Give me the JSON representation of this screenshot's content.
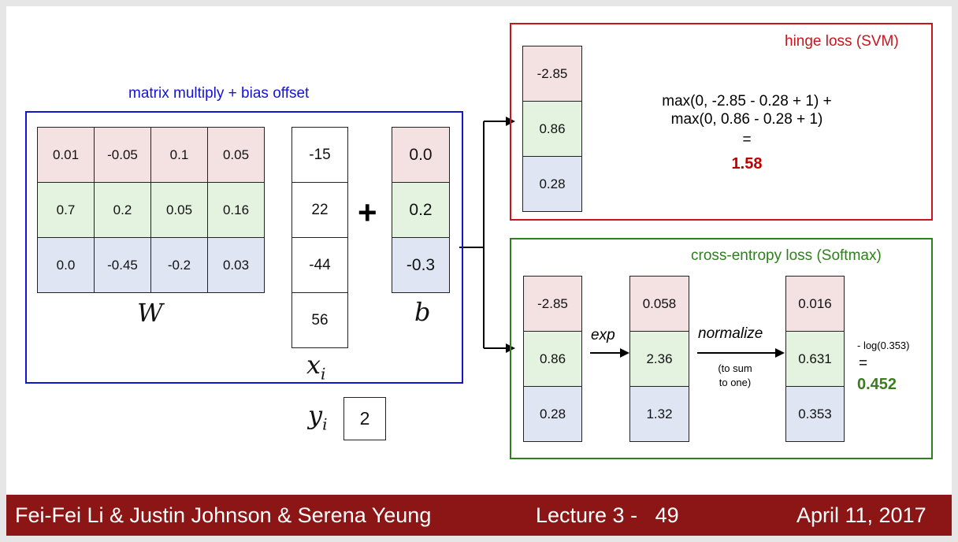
{
  "mm_title": "matrix multiply + bias offset",
  "W": [
    [
      "0.01",
      "-0.05",
      "0.1",
      "0.05"
    ],
    [
      "0.7",
      "0.2",
      "0.05",
      "0.16"
    ],
    [
      "0.0",
      "-0.45",
      "-0.2",
      "0.03"
    ]
  ],
  "W_label": "W",
  "x": [
    "-15",
    "22",
    "-44",
    "56"
  ],
  "x_label_base": "x",
  "x_label_sub": "i",
  "plus": "+",
  "b": [
    "0.0",
    "0.2",
    "-0.3"
  ],
  "b_label": "b",
  "y_label_base": "y",
  "y_label_sub": "i",
  "y_value": "2",
  "hinge": {
    "title": "hinge loss (SVM)",
    "scores": [
      "-2.85",
      "0.86",
      "0.28"
    ],
    "line1": "max(0, -2.85 - 0.28 + 1) +",
    "line2": "max(0, 0.86 - 0.28 + 1)",
    "eq": "=",
    "result": "1.58"
  },
  "softmax": {
    "title": "cross-entropy loss (Softmax)",
    "scores": [
      "-2.85",
      "0.86",
      "0.28"
    ],
    "exp_label": "exp",
    "exp_vals": [
      "0.058",
      "2.36",
      "1.32"
    ],
    "normalize_label": "normalize",
    "normalize_note1": "(to sum",
    "normalize_note2": "to one)",
    "probs": [
      "0.016",
      "0.631",
      "0.353"
    ],
    "loss_expr": "- log(0.353)",
    "eq": "=",
    "result": "0.452"
  },
  "footer": {
    "authors": "Fei-Fei Li & Justin Johnson & Serena Yeung",
    "lecture": "Lecture 3 -   49",
    "date": "April 11, 2017"
  },
  "colors": {
    "blue_frame": "#1414d2",
    "hinge_frame": "#c8141e",
    "softmax_frame": "#2f7f1f",
    "hinge_result": "#c00000",
    "softmax_result": "#3a7d1a",
    "footer_bg": "#8c1515"
  }
}
